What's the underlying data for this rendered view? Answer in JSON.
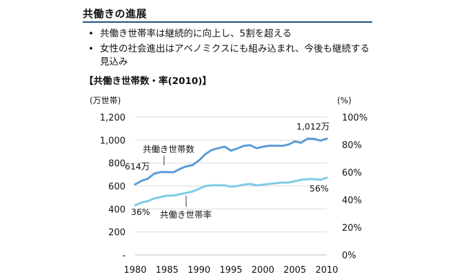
{
  "page": {
    "heading": "共働きの進展",
    "bullets": [
      "共働き世帯率は継続的に向上し、5割を超える",
      "女性の社会進出はアベノミクスにも組み込まれ、今後も継続する見込み"
    ],
    "bullet_mark": "•"
  },
  "chart_data": {
    "type": "line",
    "title": "【共働き世帯数・率(2010)】",
    "x": [
      1980,
      1981,
      1982,
      1983,
      1984,
      1985,
      1986,
      1987,
      1988,
      1989,
      1990,
      1991,
      1992,
      1993,
      1994,
      1995,
      1996,
      1997,
      1998,
      1999,
      2000,
      2001,
      2002,
      2003,
      2004,
      2005,
      2006,
      2007,
      2008,
      2009,
      2010
    ],
    "x_ticks": [
      "1980",
      "1985",
      "1990",
      "1995",
      "2000",
      "2005",
      "2010"
    ],
    "left_axis": {
      "unit_label": "(万世帯)",
      "range": [
        0,
        1200
      ],
      "ticks": [
        "-",
        "200",
        "400",
        "600",
        "800",
        "1,000",
        "1,200"
      ]
    },
    "right_axis": {
      "unit_label": "(%)",
      "range": [
        0,
        100
      ],
      "ticks": [
        "0%",
        "20%",
        "40%",
        "60%",
        "80%",
        "100%"
      ]
    },
    "series": [
      {
        "name": "共働き世帯数",
        "axis": "left",
        "color": "#5b9bd5",
        "values": [
          614,
          645,
          664,
          708,
          721,
          722,
          720,
          748,
          771,
          783,
          823,
          877,
          914,
          929,
          943,
          908,
          927,
          949,
          956,
          929,
          942,
          951,
          951,
          949,
          961,
          988,
          977,
          1013,
          1011,
          995,
          1012
        ]
      },
      {
        "name": "共働き世帯率",
        "axis": "right",
        "color": "#7ecbe6",
        "values": [
          36,
          38,
          39,
          41,
          42,
          43,
          43,
          44,
          45,
          46,
          48,
          50,
          50.5,
          50.5,
          50.5,
          49.5,
          50,
          51,
          51.5,
          50.5,
          51,
          51.5,
          52,
          52.5,
          52.5,
          53.5,
          54.5,
          55,
          55,
          54.5,
          56
        ]
      }
    ],
    "annotations": {
      "start_count": "614万",
      "end_count": "1,012万",
      "start_rate": "36%",
      "end_rate": "56%"
    },
    "grid": true
  }
}
